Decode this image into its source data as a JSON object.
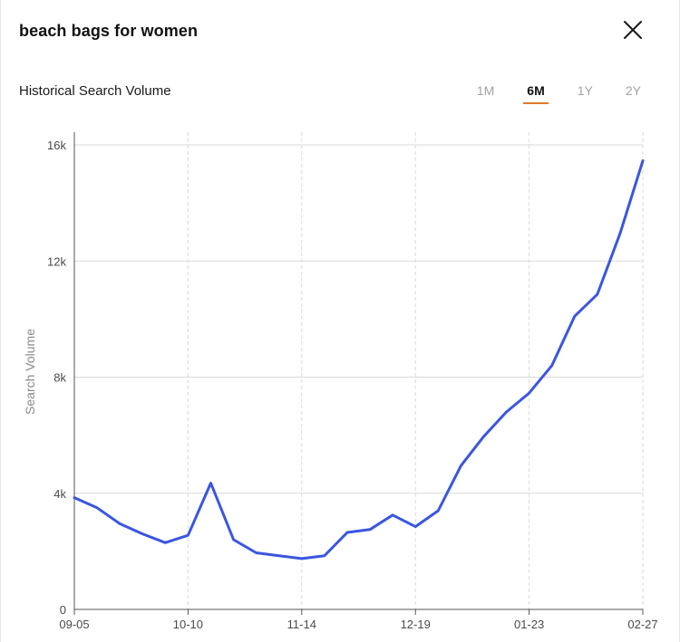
{
  "header": {
    "title": "beach bags for women",
    "close_icon": "close-icon"
  },
  "subheader": {
    "title": "Historical Search Volume",
    "ranges": [
      {
        "label": "1M",
        "active": false
      },
      {
        "label": "6M",
        "active": true
      },
      {
        "label": "1Y",
        "active": false
      },
      {
        "label": "2Y",
        "active": false
      }
    ]
  },
  "colors": {
    "line": "#3a56e0",
    "accent": "#e07a2a",
    "grid": "#d9d9d9"
  },
  "chart_data": {
    "type": "line",
    "title": "",
    "xlabel": "",
    "ylabel": "Search Volume",
    "ylim": [
      0,
      16000
    ],
    "yticks": [
      0,
      4000,
      8000,
      12000,
      16000
    ],
    "ytick_labels": [
      "0",
      "4k",
      "8k",
      "12k",
      "16k"
    ],
    "xticks": [
      "09-05",
      "10-10",
      "11-14",
      "12-19",
      "01-23",
      "02-27"
    ],
    "x_grid": "dashed vertical at x ticks",
    "y_grid": "solid horizontal at y ticks",
    "legend": "none",
    "series": [
      {
        "x": [
          "09-05",
          "09-12",
          "09-19",
          "09-26",
          "10-03",
          "10-10",
          "10-17",
          "10-24",
          "10-31",
          "11-07",
          "11-14",
          "11-21",
          "11-28",
          "12-05",
          "12-12",
          "12-19",
          "12-26",
          "01-02",
          "01-09",
          "01-16",
          "01-23",
          "01-30",
          "02-06",
          "02-13",
          "02-20",
          "02-27"
        ],
        "values": [
          3850,
          3500,
          2950,
          2600,
          2300,
          2550,
          4350,
          2400,
          1950,
          1850,
          1750,
          1850,
          2650,
          2750,
          3250,
          2850,
          3400,
          4950,
          5950,
          6800,
          7450,
          8400,
          10100,
          10850,
          12950,
          15450
        ]
      }
    ]
  }
}
